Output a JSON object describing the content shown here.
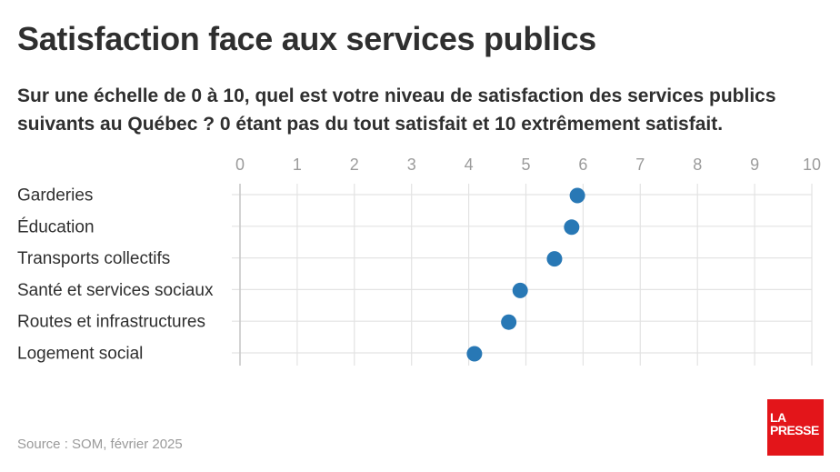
{
  "header": {
    "title": "Satisfaction face aux services publics",
    "subtitle": "Sur une échelle de 0 à 10, quel est votre niveau de satisfaction des services publics suivants au Québec ? 0 étant pas du tout satisfait et 10 extrêmement satisfait."
  },
  "footer": {
    "source": "Source : SOM, février 2025",
    "logo_line1": "LA",
    "logo_line2": "PRESSE"
  },
  "colors": {
    "dot": "#2878b5",
    "grid": "#e3e3e3",
    "logo": "#e3151a"
  },
  "chart_data": {
    "type": "scatter",
    "xlim": [
      0,
      10
    ],
    "x_ticks": [
      "0",
      "1",
      "2",
      "3",
      "4",
      "5",
      "6",
      "7",
      "8",
      "9",
      "10"
    ],
    "categories": [
      "Garderies",
      "Éducation",
      "Transports collectifs",
      "Santé et services sociaux",
      "Routes et infrastructures",
      "Logement social"
    ],
    "values": [
      5.9,
      5.8,
      5.5,
      4.9,
      4.7,
      4.1
    ],
    "grid": true
  }
}
